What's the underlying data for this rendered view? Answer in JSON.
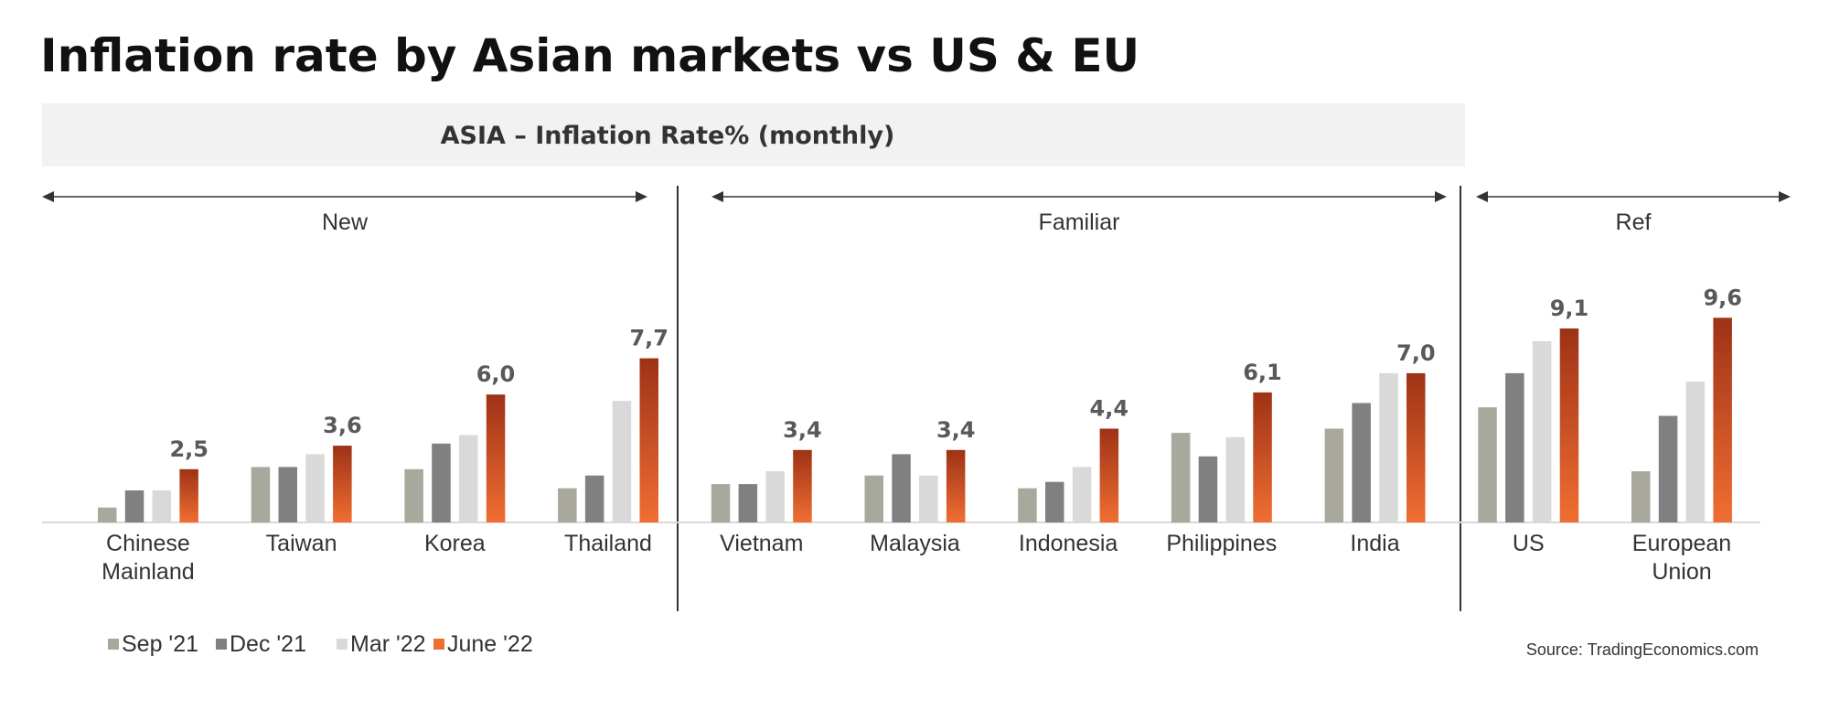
{
  "title": "Inflation rate by Asian markets vs US & EU",
  "banner": "ASIA – Inflation Rate% (monthly)",
  "source": "Source: TradingEconomics.com",
  "colors": {
    "sep21": "#A8A89C",
    "dec21": "#808080",
    "mar22": "#D9D9D9",
    "jun22_top": "#9E3216",
    "jun22_bottom": "#F06E32",
    "banner_bg": "#F2F2F2",
    "axis": "#D9D9D9",
    "divider": "#333333"
  },
  "chart_data": {
    "type": "bar",
    "title": "Inflation rate by Asian markets vs US & EU",
    "subtitle": "ASIA – Inflation Rate% (monthly)",
    "groups": [
      {
        "label": "New",
        "categories": [
          "Chinese Mainland",
          "Taiwan",
          "Korea",
          "Thailand"
        ]
      },
      {
        "label": "Familiar",
        "categories": [
          "Vietnam",
          "Malaysia",
          "Indonesia",
          "Philippines",
          "India"
        ]
      },
      {
        "label": "Ref",
        "categories": [
          "US",
          "European Union"
        ]
      }
    ],
    "categories": [
      "Chinese Mainland",
      "Taiwan",
      "Korea",
      "Thailand",
      "Vietnam",
      "Malaysia",
      "Indonesia",
      "Philippines",
      "India",
      "US",
      "European Union"
    ],
    "category_lines": [
      [
        "Chinese",
        "Mainland"
      ],
      [
        "Taiwan"
      ],
      [
        "Korea"
      ],
      [
        "Thailand"
      ],
      [
        "Vietnam"
      ],
      [
        "Malaysia"
      ],
      [
        "Indonesia"
      ],
      [
        "Philippines"
      ],
      [
        "India"
      ],
      [
        "US"
      ],
      [
        "European",
        "Union"
      ]
    ],
    "series": [
      {
        "name": "Sep '21",
        "values": [
          0.7,
          2.6,
          2.5,
          1.6,
          1.8,
          2.2,
          1.6,
          4.2,
          4.4,
          5.4,
          2.4
        ]
      },
      {
        "name": "Dec '21",
        "values": [
          1.5,
          2.6,
          3.7,
          2.2,
          1.8,
          3.2,
          1.9,
          3.1,
          5.6,
          7.0,
          5.0
        ]
      },
      {
        "name": "Mar '22",
        "values": [
          1.5,
          3.2,
          4.1,
          5.7,
          2.4,
          2.2,
          2.6,
          4.0,
          7.0,
          8.5,
          6.6
        ]
      },
      {
        "name": "June '22",
        "values": [
          2.5,
          3.6,
          6.0,
          7.7,
          3.4,
          3.4,
          4.4,
          6.1,
          7.0,
          9.1,
          9.6
        ]
      }
    ],
    "data_labels": [
      "2,5",
      "3,6",
      "6,0",
      "7,7",
      "3,4",
      "3,4",
      "4,4",
      "6,1",
      "7,0",
      "9,1",
      "9,6"
    ],
    "ylim": [
      0,
      10
    ],
    "legend_position": "bottom-left",
    "grid": false
  }
}
